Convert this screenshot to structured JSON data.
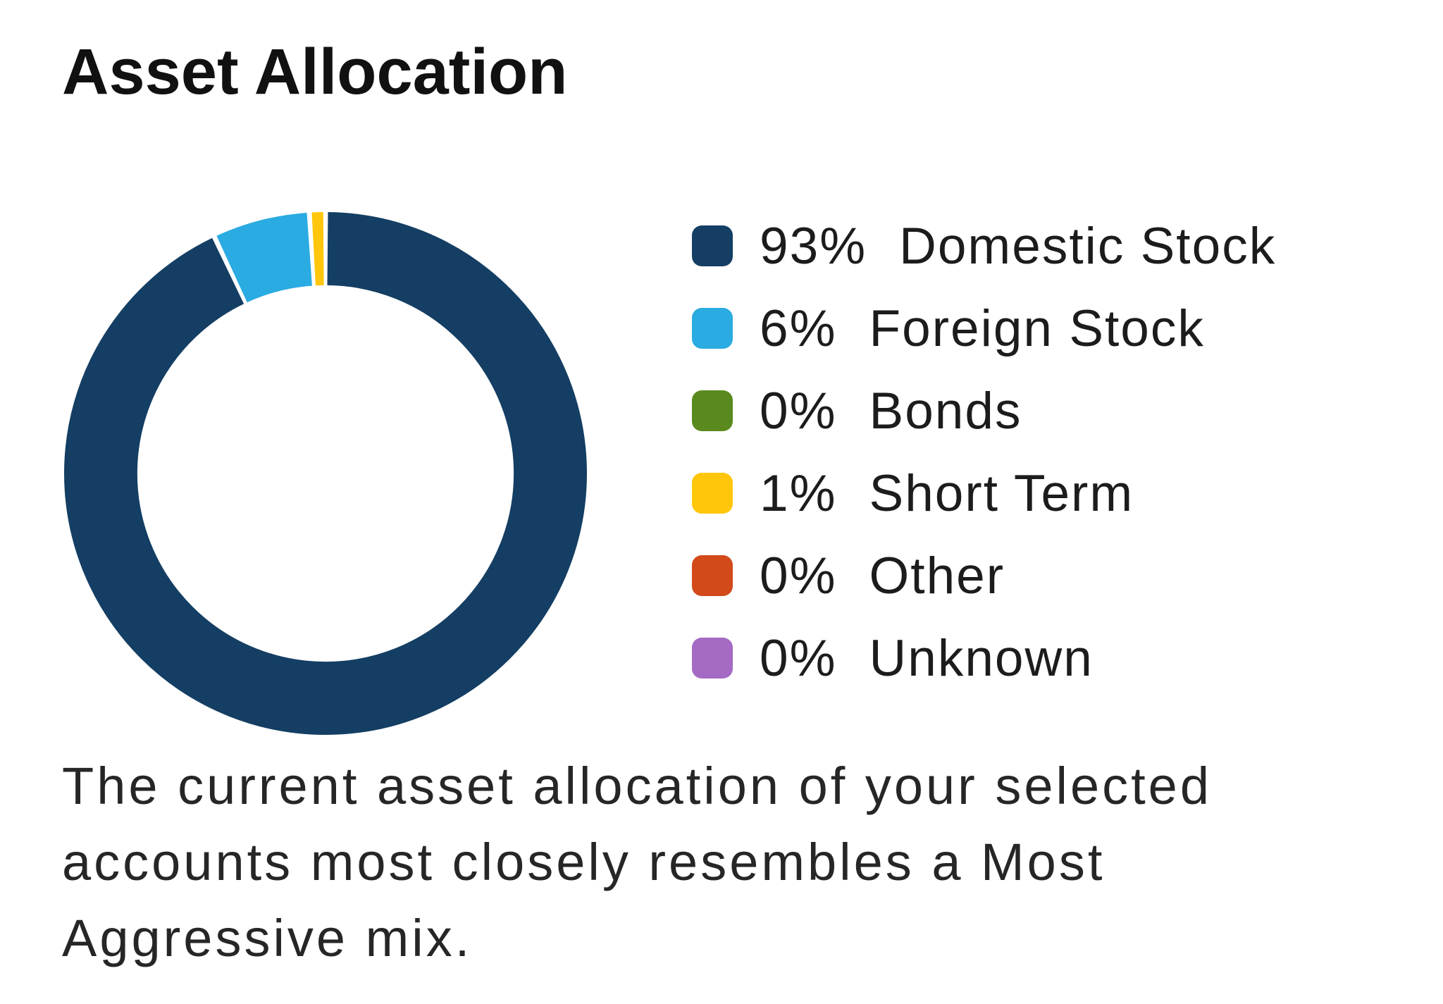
{
  "header": {
    "title": "Asset Allocation"
  },
  "chart_data": {
    "type": "pie",
    "subtype": "donut",
    "title": "Asset Allocation",
    "units": "percent",
    "start_angle_deg": 0,
    "direction": "clockwise",
    "legend_position": "right",
    "ring_thickness_ratio": 0.28,
    "slices": [
      {
        "label": "Domestic Stock",
        "value": 93,
        "color": "#143e63"
      },
      {
        "label": "Foreign Stock",
        "value": 6,
        "color": "#2aabe2"
      },
      {
        "label": "Bonds",
        "value": 0,
        "color": "#5a8a1e"
      },
      {
        "label": "Short Term",
        "value": 1,
        "color": "#ffc60b"
      },
      {
        "label": "Other",
        "value": 0,
        "color": "#d2491a"
      },
      {
        "label": "Unknown",
        "value": 0,
        "color": "#a46ac4"
      }
    ]
  },
  "legend": {
    "items": [
      {
        "pct_label": "93%",
        "label": "Domestic Stock"
      },
      {
        "pct_label": "6%",
        "label": "Foreign Stock"
      },
      {
        "pct_label": "0%",
        "label": "Bonds"
      },
      {
        "pct_label": "1%",
        "label": "Short Term"
      },
      {
        "pct_label": "0%",
        "label": "Other"
      },
      {
        "pct_label": "0%",
        "label": "Unknown"
      }
    ]
  },
  "description": {
    "text": "The current asset allocation of your selected accounts most closely resembles a Most Aggressive mix."
  },
  "colors": {
    "background": "#ffffff",
    "title_text": "#111111",
    "body_text": "#262626"
  }
}
